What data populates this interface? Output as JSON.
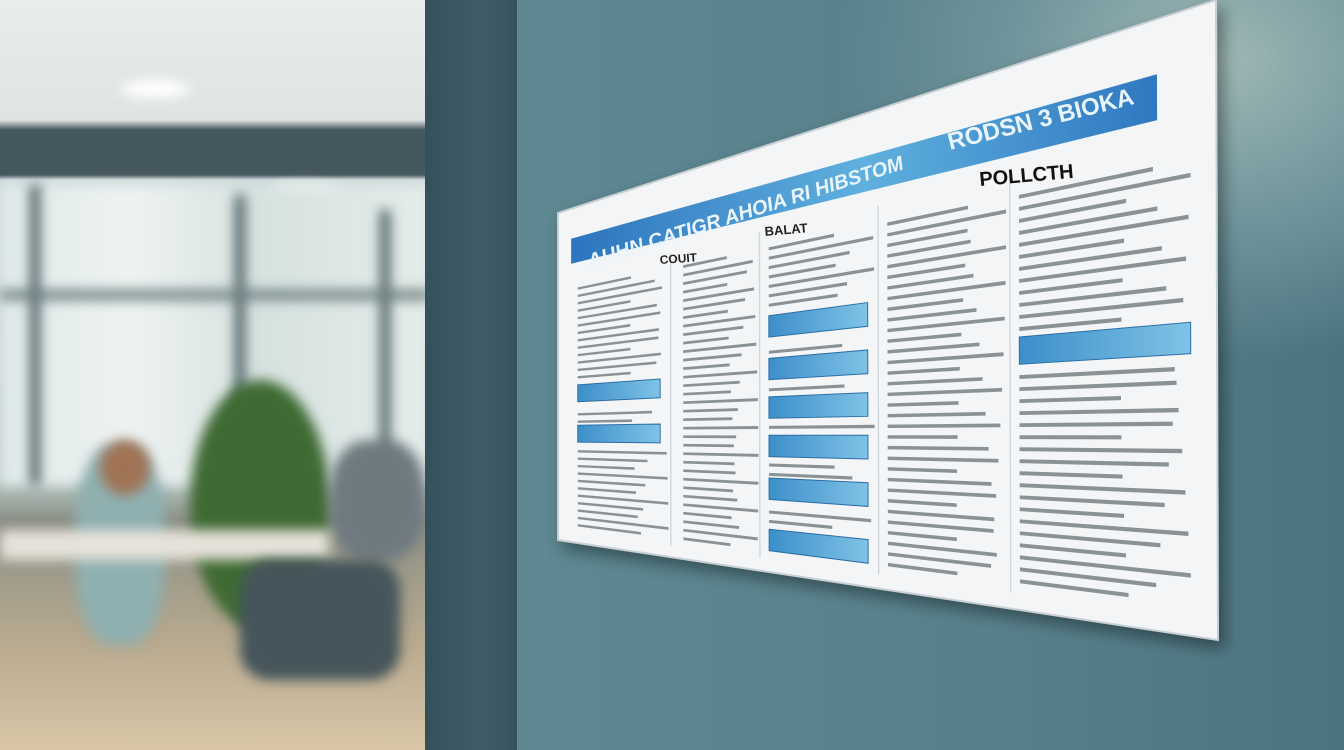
{
  "scene": {
    "description_colors": {
      "wall": "#5d8590",
      "pillar": "#3d5a66",
      "accent_blue": "#2f7fc4",
      "poster": "#f2f4f5"
    }
  },
  "poster": {
    "banner_left": "AUHN CATIGR AHOIA RI HIBSTOM",
    "banner_right": "RODSN 3 BIOKA",
    "heading_policy": "POLLCTH",
    "heading_col1": "COUIT",
    "heading_col2": "BALAT",
    "columns": 5
  }
}
